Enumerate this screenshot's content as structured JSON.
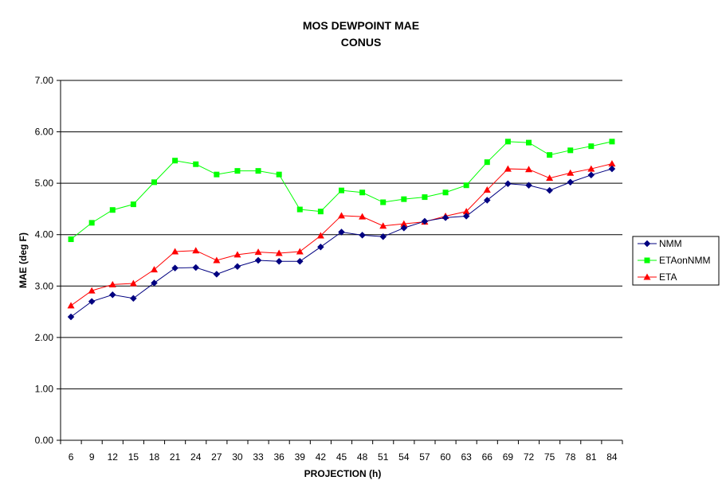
{
  "chart_data": {
    "type": "line",
    "title": "MOS DEWPOINT MAE",
    "subtitle": "CONUS",
    "xlabel": "PROJECTION (h)",
    "ylabel": "MAE (deg F)",
    "ylim": [
      0,
      7
    ],
    "yticks": [
      "0.00",
      "1.00",
      "2.00",
      "3.00",
      "4.00",
      "5.00",
      "6.00",
      "7.00"
    ],
    "grid": true,
    "legend_position": "right",
    "categories": [
      "6",
      "9",
      "12",
      "15",
      "18",
      "21",
      "24",
      "27",
      "30",
      "33",
      "36",
      "39",
      "42",
      "45",
      "48",
      "51",
      "54",
      "57",
      "60",
      "63",
      "66",
      "69",
      "72",
      "75",
      "78",
      "81",
      "84"
    ],
    "series": [
      {
        "name": "NMM",
        "color": "#000080",
        "marker": "diamond",
        "values": [
          2.4,
          2.7,
          2.83,
          2.76,
          3.06,
          3.35,
          3.36,
          3.23,
          3.38,
          3.5,
          3.48,
          3.48,
          3.76,
          4.05,
          3.99,
          3.96,
          4.13,
          4.26,
          4.33,
          4.36,
          4.67,
          4.99,
          4.96,
          4.86,
          5.02,
          5.16,
          5.28
        ]
      },
      {
        "name": "ETAonNMM",
        "color": "#00ff00",
        "marker": "square",
        "values": [
          3.91,
          4.23,
          4.48,
          4.59,
          5.02,
          5.44,
          5.37,
          5.17,
          5.24,
          5.24,
          5.17,
          4.49,
          4.45,
          4.86,
          4.82,
          4.63,
          4.69,
          4.73,
          4.82,
          4.96,
          5.41,
          5.81,
          5.79,
          5.55,
          5.64,
          5.72,
          5.81
        ]
      },
      {
        "name": "ETA",
        "color": "#ff0000",
        "marker": "triangle",
        "values": [
          2.62,
          2.91,
          3.03,
          3.05,
          3.32,
          3.67,
          3.69,
          3.5,
          3.61,
          3.66,
          3.64,
          3.67,
          3.98,
          4.37,
          4.35,
          4.17,
          4.21,
          4.25,
          4.36,
          4.45,
          4.87,
          5.28,
          5.27,
          5.1,
          5.2,
          5.28,
          5.38
        ]
      }
    ]
  }
}
